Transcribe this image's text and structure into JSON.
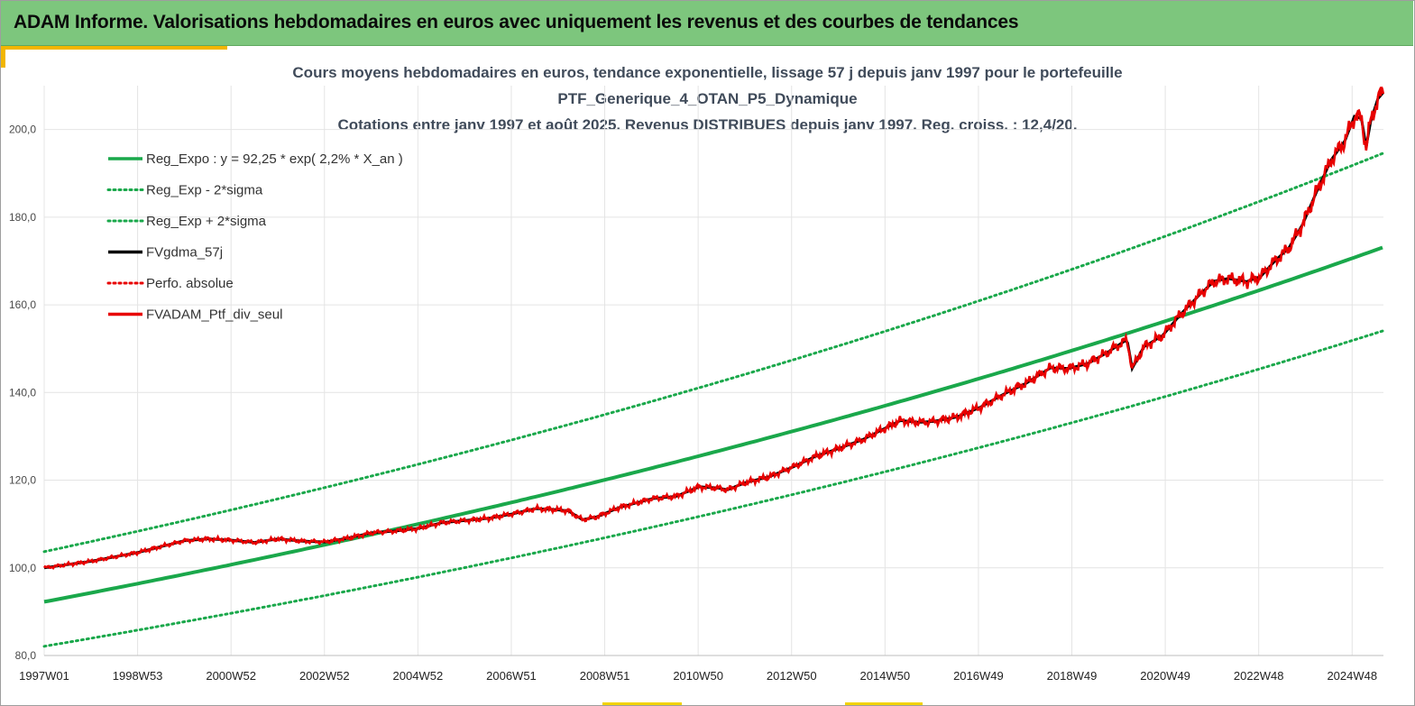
{
  "header": {
    "title": "ADAM Informe. Valorisations hebdomadaires en euros avec uniquement les revenus et des courbes de tendances"
  },
  "colors": {
    "header_bg": "#7dc67d",
    "accent": "#f2b600",
    "regression": "#1aa84b",
    "fvgdma": "#000000",
    "perfo": "#e80000",
    "grid": "#e4e4e4"
  },
  "chart_data": {
    "type": "line",
    "title_lines": [
      "Cours moyens hebdomadaires  en euros, tendance exponentielle, lissage 57 j depuis janv 1997 pour le portefeuille",
      "PTF_Generique_4_OTAN_P5_Dynamique",
      "Cotations entre janv 1997 et août 2025. Revenus DISTRIBUES depuis janv 1997. Reg. croiss. : 12,4/20."
    ],
    "y_ticks": [
      "80,0",
      "100,0",
      "120,0",
      "140,0",
      "160,0",
      "180,0",
      "200,0"
    ],
    "ylim": [
      80,
      210
    ],
    "x_ticks": [
      "1997W01",
      "1998W53",
      "2000W52",
      "2002W52",
      "2004W52",
      "2006W51",
      "2008W51",
      "2010W50",
      "2012W50",
      "2014W50",
      "2016W49",
      "2018W49",
      "2020W49",
      "2022W48",
      "2024W48"
    ],
    "x_range_years": [
      1997.0,
      2025.62
    ],
    "grid": "vertical and horizontal",
    "legend_position": "top-left",
    "regression": {
      "a": 92.25,
      "rate": 0.022,
      "sigma2_low_ratio": 0.89,
      "sigma2_high_ratio": 1.124
    },
    "series": [
      {
        "name": "Reg_Expo : y = 92,25 * exp( 2,2% *  X_an )",
        "style": "solid",
        "color": "#1aa84b"
      },
      {
        "name": "Reg_Exp - 2*sigma",
        "style": "dotted",
        "color": "#1aa84b"
      },
      {
        "name": "Reg_Exp + 2*sigma",
        "style": "dotted",
        "color": "#1aa84b"
      },
      {
        "name": "FVgdma_57j",
        "style": "solid",
        "color": "#000000"
      },
      {
        "name": "Perfo. absolue",
        "style": "dotted",
        "color": "#e80000"
      },
      {
        "name": "FVADAM_Ptf_div_seul",
        "style": "solid",
        "color": "#e80000"
      }
    ],
    "portfolio_points": [
      [
        1997.0,
        100.0
      ],
      [
        1998.0,
        101.5
      ],
      [
        1999.0,
        103.5
      ],
      [
        2000.0,
        106.2
      ],
      [
        2000.5,
        106.6
      ],
      [
        2001.0,
        106.3
      ],
      [
        2001.5,
        105.8
      ],
      [
        2002.0,
        106.6
      ],
      [
        2002.5,
        106.1
      ],
      [
        2003.0,
        105.9
      ],
      [
        2003.5,
        106.8
      ],
      [
        2004.0,
        108.0
      ],
      [
        2004.5,
        108.4
      ],
      [
        2005.0,
        109.0
      ],
      [
        2005.5,
        110.3
      ],
      [
        2006.0,
        110.8
      ],
      [
        2006.5,
        111.3
      ],
      [
        2007.0,
        112.3
      ],
      [
        2007.5,
        113.5
      ],
      [
        2007.9,
        113.3
      ],
      [
        2008.2,
        113.0
      ],
      [
        2008.5,
        111.0
      ],
      [
        2008.8,
        111.6
      ],
      [
        2009.3,
        113.8
      ],
      [
        2010.0,
        115.8
      ],
      [
        2010.5,
        116.3
      ],
      [
        2011.0,
        118.5
      ],
      [
        2011.4,
        118.2
      ],
      [
        2011.6,
        117.8
      ],
      [
        2012.0,
        119.5
      ],
      [
        2012.5,
        120.8
      ],
      [
        2013.0,
        123.0
      ],
      [
        2013.5,
        125.5
      ],
      [
        2014.0,
        127.3
      ],
      [
        2014.5,
        129.3
      ],
      [
        2015.0,
        132.0
      ],
      [
        2015.3,
        133.6
      ],
      [
        2015.7,
        133.2
      ],
      [
        2016.0,
        133.4
      ],
      [
        2016.5,
        134.4
      ],
      [
        2017.0,
        136.6
      ],
      [
        2017.5,
        139.6
      ],
      [
        2018.0,
        142.2
      ],
      [
        2018.5,
        145.6
      ],
      [
        2018.9,
        145.5
      ],
      [
        2019.3,
        146.6
      ],
      [
        2019.7,
        149.0
      ],
      [
        2020.1,
        151.8
      ],
      [
        2020.15,
        151.5
      ],
      [
        2020.25,
        145.5
      ],
      [
        2020.5,
        150.4
      ],
      [
        2020.9,
        153.0
      ],
      [
        2021.3,
        158.0
      ],
      [
        2021.7,
        162.4
      ],
      [
        2022.0,
        165.4
      ],
      [
        2022.3,
        166.0
      ],
      [
        2022.7,
        165.3
      ],
      [
        2023.0,
        166.5
      ],
      [
        2023.3,
        170.0
      ],
      [
        2023.6,
        173.0
      ],
      [
        2023.9,
        178.5
      ],
      [
        2024.2,
        186.0
      ],
      [
        2024.5,
        193.0
      ],
      [
        2024.8,
        197.5
      ],
      [
        2025.0,
        203.0
      ],
      [
        2025.15,
        202.5
      ],
      [
        2025.25,
        196.0
      ],
      [
        2025.35,
        202.0
      ],
      [
        2025.5,
        207.0
      ],
      [
        2025.62,
        208.5
      ]
    ]
  },
  "footer_marks": [
    "",
    ""
  ]
}
